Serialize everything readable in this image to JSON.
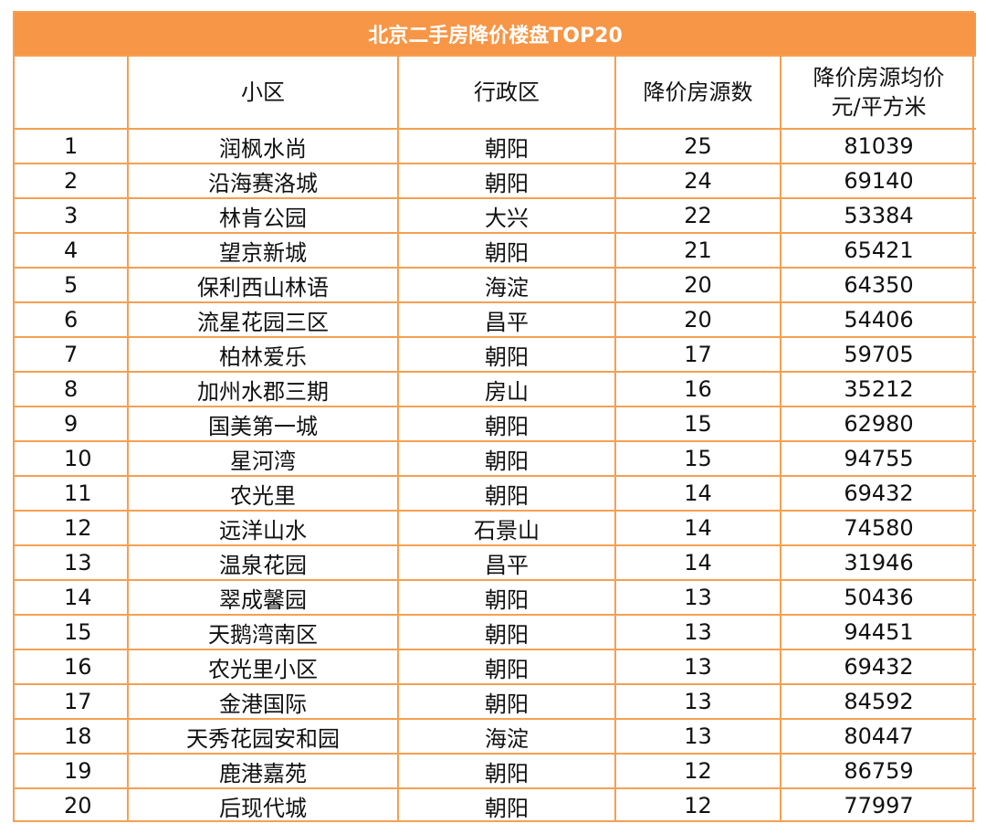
{
  "chart_data": {
    "type": "table",
    "title": "北京二手房降价楼盘TOP20",
    "columns": [
      "",
      "小区",
      "行政区",
      "降价房源数",
      "降价房源均价\n元/平方米"
    ],
    "rows": [
      [
        "1",
        "润枫水尚",
        "朝阳",
        "25",
        "81039"
      ],
      [
        "2",
        "沿海赛洛城",
        "朝阳",
        "24",
        "69140"
      ],
      [
        "3",
        "林肯公园",
        "大兴",
        "22",
        "53384"
      ],
      [
        "4",
        "望京新城",
        "朝阳",
        "21",
        "65421"
      ],
      [
        "5",
        "保利西山林语",
        "海淀",
        "20",
        "64350"
      ],
      [
        "6",
        "流星花园三区",
        "昌平",
        "20",
        "54406"
      ],
      [
        "7",
        "柏林爱乐",
        "朝阳",
        "17",
        "59705"
      ],
      [
        "8",
        "加州水郡三期",
        "房山",
        "16",
        "35212"
      ],
      [
        "9",
        "国美第一城",
        "朝阳",
        "15",
        "62980"
      ],
      [
        "10",
        "星河湾",
        "朝阳",
        "15",
        "94755"
      ],
      [
        "11",
        "农光里",
        "朝阳",
        "14",
        "69432"
      ],
      [
        "12",
        "远洋山水",
        "石景山",
        "14",
        "74580"
      ],
      [
        "13",
        "温泉花园",
        "昌平",
        "14",
        "31946"
      ],
      [
        "14",
        "翠成馨园",
        "朝阳",
        "13",
        "50436"
      ],
      [
        "15",
        "天鹅湾南区",
        "朝阳",
        "13",
        "94451"
      ],
      [
        "16",
        "农光里小区",
        "朝阳",
        "13",
        "69432"
      ],
      [
        "17",
        "金港国际",
        "朝阳",
        "13",
        "84592"
      ],
      [
        "18",
        "天秀花园安和园",
        "海淀",
        "13",
        "80447"
      ],
      [
        "19",
        "鹿港嘉苑",
        "朝阳",
        "12",
        "86759"
      ],
      [
        "20",
        "后现代城",
        "朝阳",
        "12",
        "77997"
      ]
    ]
  },
  "colors": {
    "header_bg": "#f79646",
    "border": "#f4a052",
    "header_text": "#ffffff",
    "cell_text": "#111111"
  }
}
